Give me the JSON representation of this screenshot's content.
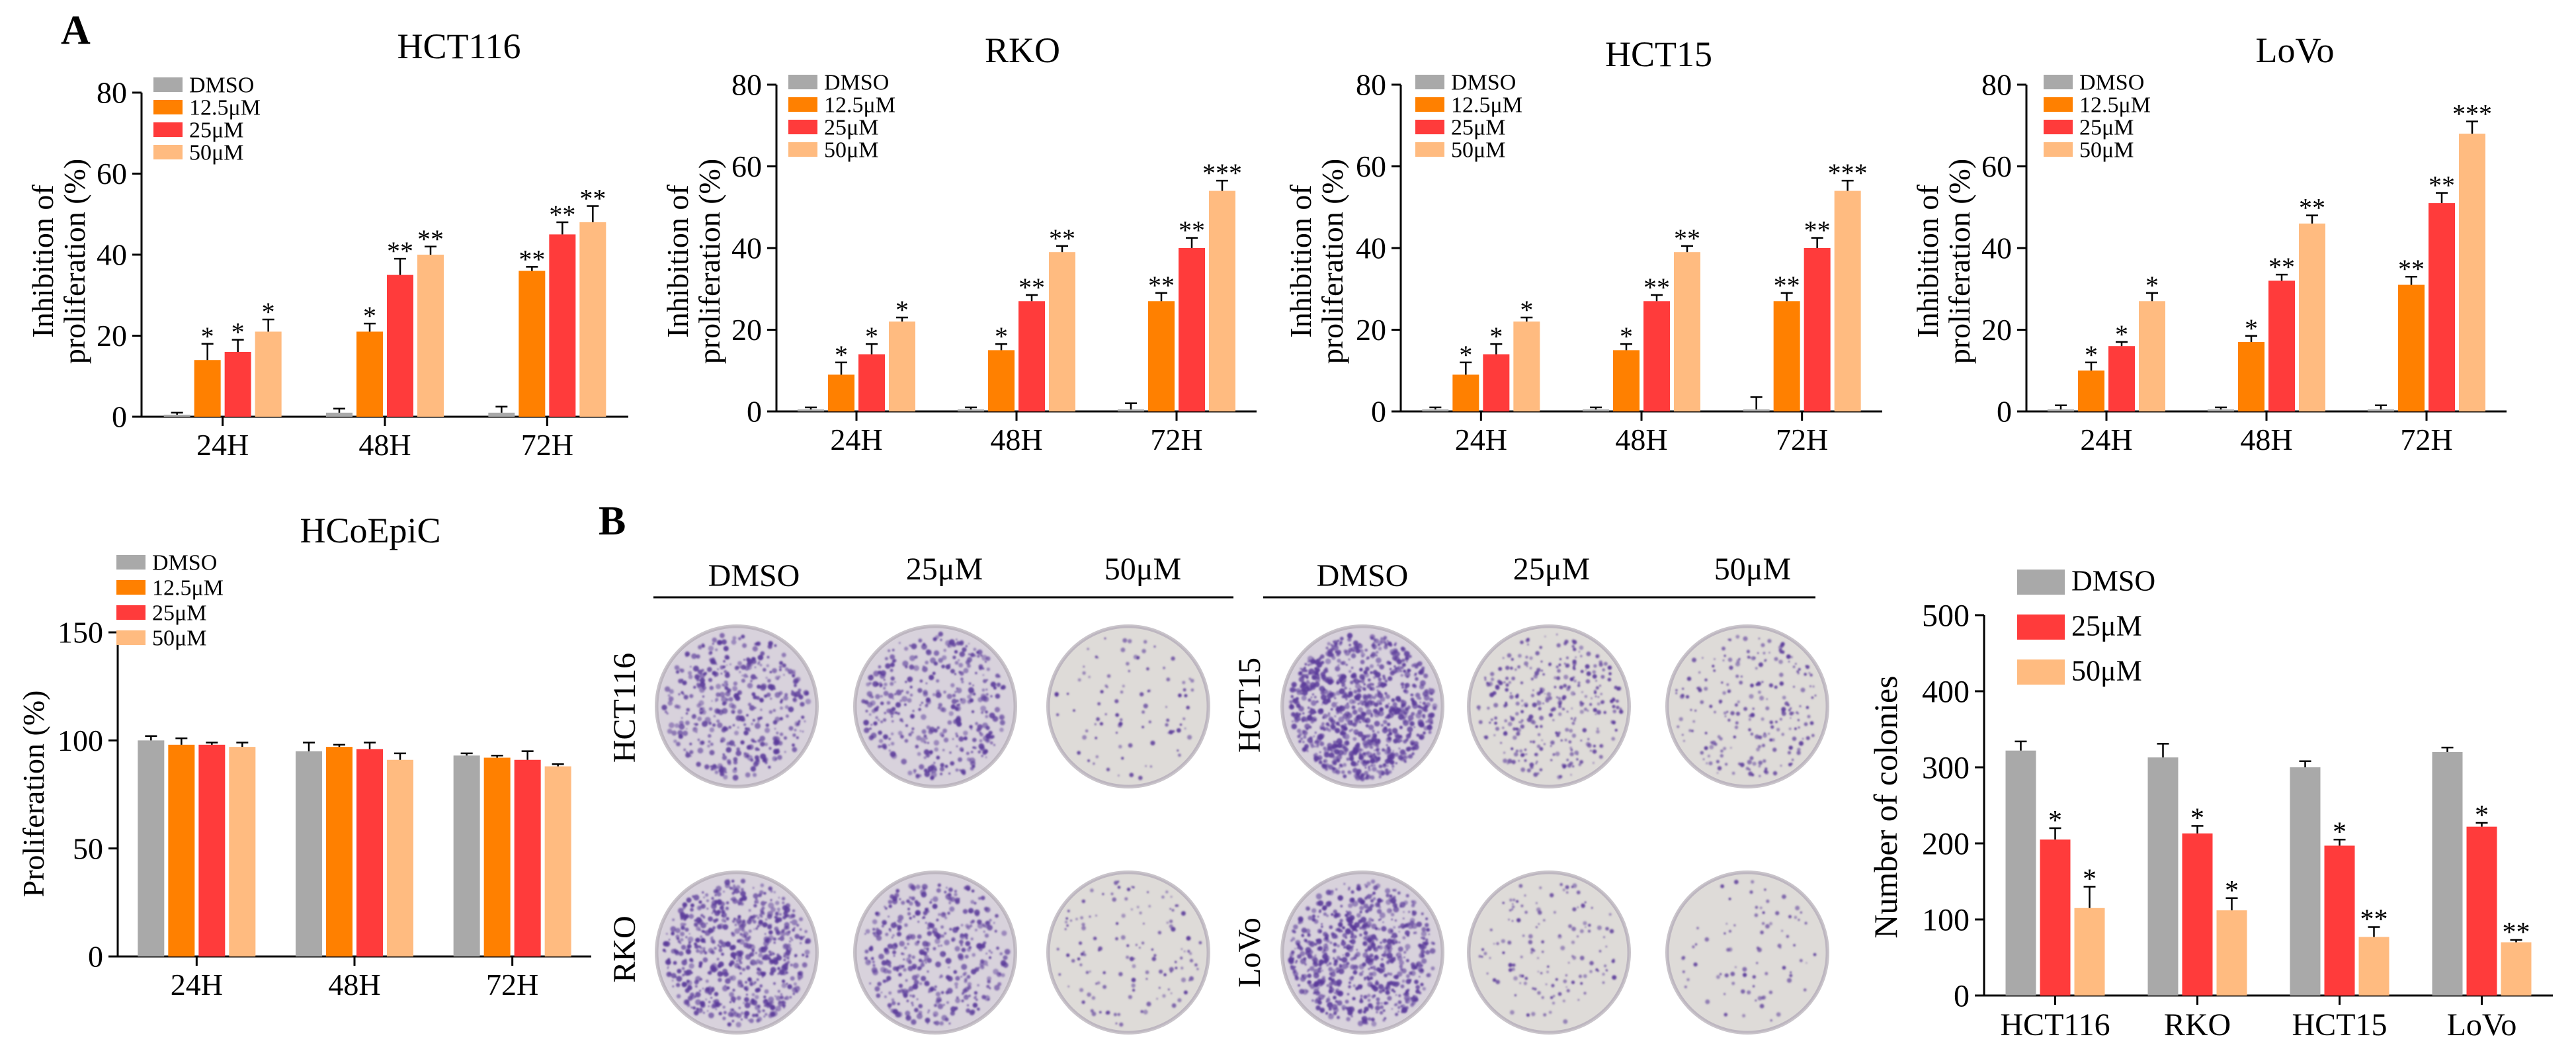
{
  "panel_labels": {
    "a": "A",
    "b": "B"
  },
  "colors": {
    "dmso": "#a9a9a9",
    "c12": "#ff8000",
    "c25": "#ff3b3b",
    "c50": "#ffbb80",
    "plate_stain": "#5a3a9a",
    "plate_bg": "#d8d2dc",
    "plate_bg_clear": "#dedbd8"
  },
  "chart_data": [
    {
      "id": "hct116",
      "type": "bar",
      "title": "HCT116",
      "ylabel_lines": [
        "Inhibition of",
        "proliferation (%)"
      ],
      "ylim": [
        0,
        80
      ],
      "yticks": [
        "0",
        "20",
        "40",
        "60",
        "80"
      ],
      "categories": [
        "24H",
        "48H",
        "72H"
      ],
      "series": [
        {
          "name": "DMSO",
          "values": [
            0.5,
            1,
            1
          ],
          "errors": [
            0.5,
            1,
            1.5
          ],
          "sig": [
            "",
            "",
            ""
          ]
        },
        {
          "name": "12.5μM",
          "values": [
            14,
            21,
            36
          ],
          "errors": [
            4,
            2,
            1
          ],
          "sig": [
            "*",
            "*",
            "**"
          ]
        },
        {
          "name": "25μM",
          "values": [
            16,
            35,
            45
          ],
          "errors": [
            3,
            4,
            3
          ],
          "sig": [
            "*",
            "**",
            "**"
          ]
        },
        {
          "name": "50μM",
          "values": [
            21,
            40,
            48
          ],
          "errors": [
            3,
            2,
            4
          ],
          "sig": [
            "*",
            "**",
            "**"
          ]
        }
      ]
    },
    {
      "id": "rko",
      "type": "bar",
      "title": "RKO",
      "ylabel_lines": [
        "Inhibition of",
        "proliferation (%)"
      ],
      "ylim": [
        0,
        80
      ],
      "yticks": [
        "0",
        "20",
        "40",
        "60",
        "80"
      ],
      "categories": [
        "24H",
        "48H",
        "72H"
      ],
      "series": [
        {
          "name": "DMSO",
          "values": [
            0.5,
            0.5,
            0.5
          ],
          "errors": [
            0.5,
            0.5,
            1.5
          ],
          "sig": [
            "",
            "",
            ""
          ]
        },
        {
          "name": "12.5μM",
          "values": [
            9,
            15,
            27
          ],
          "errors": [
            3,
            1.5,
            2
          ],
          "sig": [
            "*",
            "*",
            "**"
          ]
        },
        {
          "name": "25μM",
          "values": [
            14,
            27,
            40
          ],
          "errors": [
            2.5,
            1.5,
            2.5
          ],
          "sig": [
            "*",
            "**",
            "**"
          ]
        },
        {
          "name": "50μM",
          "values": [
            22,
            39,
            54
          ],
          "errors": [
            1,
            1.5,
            2.5
          ],
          "sig": [
            "*",
            "**",
            "***"
          ]
        }
      ]
    },
    {
      "id": "hct15",
      "type": "bar",
      "title": "HCT15",
      "ylabel_lines": [
        "Inhibition of",
        "proliferation (%)"
      ],
      "ylim": [
        0,
        80
      ],
      "yticks": [
        "0",
        "20",
        "40",
        "60",
        "80"
      ],
      "categories": [
        "24H",
        "48H",
        "72H"
      ],
      "series": [
        {
          "name": "DMSO",
          "values": [
            0.5,
            0.5,
            0.5
          ],
          "errors": [
            0.5,
            0.5,
            3
          ],
          "sig": [
            "",
            "",
            ""
          ]
        },
        {
          "name": "12.5μM",
          "values": [
            9,
            15,
            27
          ],
          "errors": [
            3,
            1.5,
            2
          ],
          "sig": [
            "*",
            "*",
            "**"
          ]
        },
        {
          "name": "25μM",
          "values": [
            14,
            27,
            40
          ],
          "errors": [
            2.5,
            1.5,
            2.5
          ],
          "sig": [
            "*",
            "**",
            "**"
          ]
        },
        {
          "name": "50μM",
          "values": [
            22,
            39,
            54
          ],
          "errors": [
            1,
            1.5,
            2.5
          ],
          "sig": [
            "*",
            "**",
            "***"
          ]
        }
      ]
    },
    {
      "id": "lovo",
      "type": "bar",
      "title": "LoVo",
      "ylabel_lines": [
        "Inhibition of",
        "proliferation (%)"
      ],
      "ylim": [
        0,
        80
      ],
      "yticks": [
        "0",
        "20",
        "40",
        "60",
        "80"
      ],
      "categories": [
        "24H",
        "48H",
        "72H"
      ],
      "series": [
        {
          "name": "DMSO",
          "values": [
            0.5,
            0.5,
            0.5
          ],
          "errors": [
            1,
            0.5,
            1
          ],
          "sig": [
            "",
            "",
            ""
          ]
        },
        {
          "name": "12.5μM",
          "values": [
            10,
            17,
            31
          ],
          "errors": [
            2,
            1.5,
            2
          ],
          "sig": [
            "*",
            "*",
            "**"
          ]
        },
        {
          "name": "25μM",
          "values": [
            16,
            32,
            51
          ],
          "errors": [
            1,
            1.5,
            2.5
          ],
          "sig": [
            "*",
            "**",
            "**"
          ]
        },
        {
          "name": "50μM",
          "values": [
            27,
            46,
            68
          ],
          "errors": [
            2,
            2,
            3
          ],
          "sig": [
            "*",
            "**",
            "***"
          ]
        }
      ]
    },
    {
      "id": "hcoepic",
      "type": "bar",
      "title": "HCoEpiC",
      "ylabel_lines": [
        "Proliferation (%)"
      ],
      "ylim": [
        0,
        150
      ],
      "yticks": [
        "0",
        "50",
        "100",
        "150"
      ],
      "categories": [
        "24H",
        "48H",
        "72H"
      ],
      "series": [
        {
          "name": "DMSO",
          "values": [
            100,
            95,
            93
          ],
          "errors": [
            2,
            4,
            1
          ],
          "sig": [
            "",
            "",
            ""
          ]
        },
        {
          "name": "12.5μM",
          "values": [
            98,
            97,
            92
          ],
          "errors": [
            3,
            1,
            1
          ],
          "sig": [
            "",
            "",
            ""
          ]
        },
        {
          "name": "25μM",
          "values": [
            98,
            96,
            91
          ],
          "errors": [
            1,
            3,
            4
          ],
          "sig": [
            "",
            "",
            ""
          ]
        },
        {
          "name": "50μM",
          "values": [
            97,
            91,
            88
          ],
          "errors": [
            2,
            3,
            1
          ],
          "sig": [
            "",
            "",
            ""
          ]
        }
      ]
    },
    {
      "id": "colonies",
      "type": "bar",
      "title": "",
      "ylabel_lines": [
        "Number of colonies"
      ],
      "ylim": [
        0,
        500
      ],
      "yticks": [
        "0",
        "100",
        "200",
        "300",
        "400",
        "500"
      ],
      "categories": [
        "HCT116",
        "RKO",
        "HCT15",
        "LoVo"
      ],
      "series": [
        {
          "name": "DMSO",
          "values": [
            322,
            313,
            300,
            320
          ],
          "errors": [
            12,
            18,
            8,
            6
          ],
          "sig": [
            "",
            "",
            "",
            ""
          ]
        },
        {
          "name": "25μM",
          "values": [
            205,
            213,
            197,
            222
          ],
          "errors": [
            15,
            10,
            8,
            5
          ],
          "sig": [
            "*",
            "*",
            "*",
            "*"
          ]
        },
        {
          "name": "50μM",
          "values": [
            115,
            112,
            77,
            70
          ],
          "errors": [
            28,
            16,
            13,
            3
          ],
          "sig": [
            "*",
            "*",
            "**",
            "**"
          ]
        }
      ]
    }
  ],
  "colony_assay": {
    "left_group": {
      "columns": [
        "DMSO",
        "25μM",
        "50μM"
      ],
      "rows": [
        "HCT116",
        "RKO"
      ]
    },
    "right_group": {
      "columns": [
        "DMSO",
        "25μM",
        "50μM"
      ],
      "rows": [
        "HCT15",
        "LoVo"
      ]
    }
  }
}
